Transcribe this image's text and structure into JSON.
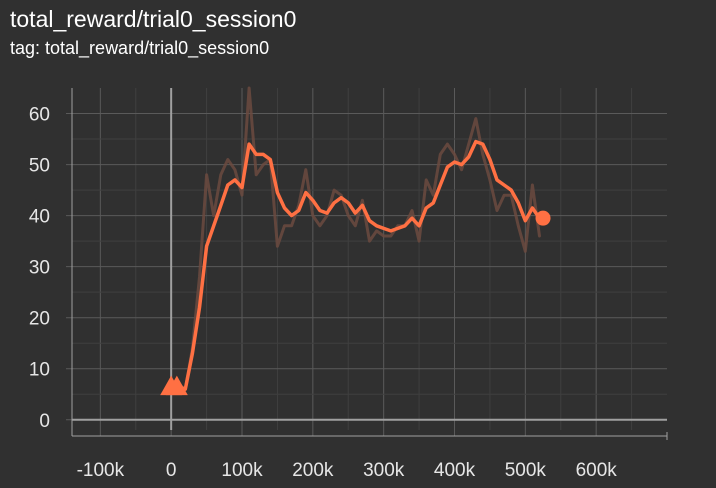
{
  "header": {
    "title": "total_reward/trial0_session0",
    "subtitle": "tag: total_reward/trial0_session0"
  },
  "colors": {
    "background": "#303030",
    "grid": "#5a5a5a",
    "axis": "#a0a0a0",
    "smoothed": "#ff7043",
    "raw": "#6b4a40"
  },
  "chart_data": {
    "type": "line",
    "title": "",
    "xlabel": "",
    "ylabel": "",
    "xlim": [
      -140000,
      700000
    ],
    "ylim": [
      -2,
      65
    ],
    "x_ticks": [
      -100000,
      0,
      100000,
      200000,
      300000,
      400000,
      500000,
      600000
    ],
    "x_tick_labels": [
      "-100k",
      "0",
      "100k",
      "200k",
      "300k",
      "400k",
      "500k",
      "600k"
    ],
    "y_ticks": [
      0,
      10,
      20,
      30,
      40,
      50,
      60
    ],
    "y_tick_labels": [
      "0",
      "10",
      "20",
      "30",
      "40",
      "50",
      "60"
    ],
    "grid": true,
    "legend": "none",
    "series": [
      {
        "role": "raw",
        "x": [
          0,
          10000,
          20000,
          30000,
          40000,
          50000,
          60000,
          70000,
          80000,
          90000,
          100000,
          110000,
          120000,
          130000,
          140000,
          150000,
          160000,
          170000,
          180000,
          190000,
          200000,
          210000,
          220000,
          230000,
          240000,
          250000,
          260000,
          270000,
          280000,
          290000,
          300000,
          310000,
          320000,
          330000,
          340000,
          350000,
          360000,
          370000,
          380000,
          390000,
          400000,
          410000,
          420000,
          430000,
          440000,
          450000,
          460000,
          470000,
          480000,
          490000,
          500000,
          510000,
          520000
        ],
        "y": [
          6,
          7,
          6,
          14,
          28,
          48,
          40,
          48,
          51,
          49,
          44,
          65,
          48,
          50,
          51,
          34,
          38,
          38,
          42,
          49,
          40,
          38,
          40,
          45,
          44,
          40,
          38,
          43,
          35,
          37,
          36,
          36,
          38,
          38,
          41,
          35,
          47,
          44,
          52,
          54,
          52,
          49,
          54,
          59,
          52,
          47,
          41,
          44,
          44,
          38,
          33,
          46,
          36
        ]
      },
      {
        "role": "smoothed",
        "x": [
          0,
          10000,
          20000,
          30000,
          40000,
          50000,
          60000,
          70000,
          80000,
          90000,
          100000,
          110000,
          120000,
          130000,
          140000,
          150000,
          160000,
          170000,
          180000,
          190000,
          200000,
          210000,
          220000,
          230000,
          240000,
          250000,
          260000,
          270000,
          280000,
          290000,
          300000,
          310000,
          320000,
          330000,
          340000,
          350000,
          360000,
          370000,
          380000,
          390000,
          400000,
          410000,
          420000,
          430000,
          440000,
          450000,
          460000,
          470000,
          480000,
          490000,
          500000,
          510000,
          520000
        ],
        "y": [
          6,
          6.5,
          6,
          13,
          22,
          34,
          38,
          42,
          46,
          47,
          45.5,
          54,
          52,
          52,
          51,
          44.5,
          41.5,
          40,
          41,
          44.5,
          43,
          41,
          40.5,
          42.5,
          43.5,
          42.5,
          40.5,
          42,
          39,
          38,
          37.5,
          37,
          37.5,
          38,
          39.5,
          38,
          41.5,
          42.5,
          46,
          49.5,
          50.5,
          50,
          51.5,
          54.5,
          54,
          51,
          47,
          46,
          45,
          42.5,
          39,
          41.5,
          39.5
        ]
      }
    ],
    "start_markers": [
      {
        "x": 0,
        "y": 6
      },
      {
        "x": 8000,
        "y": 6
      }
    ],
    "end_marker": {
      "x": 525000,
      "y": 39.5
    }
  }
}
